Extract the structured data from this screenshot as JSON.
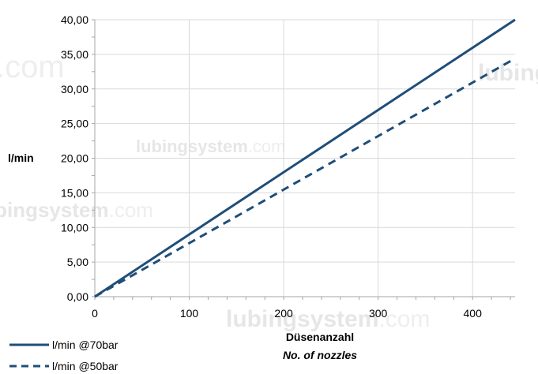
{
  "chart_data": {
    "type": "line",
    "title": "",
    "xlabel": "Düsenanzahl",
    "xlabel_sub": "No. of nozzles",
    "ylabel": "l/min",
    "xlim": [
      0,
      445
    ],
    "ylim": [
      0,
      40
    ],
    "x_ticks": [
      0,
      100,
      200,
      300,
      400
    ],
    "x_tick_labels": [
      "0",
      "100",
      "200",
      "300",
      "400"
    ],
    "y_ticks": [
      0,
      5,
      10,
      15,
      20,
      25,
      30,
      35,
      40
    ],
    "y_tick_labels": [
      "0,00",
      "5,00",
      "10,00",
      "15,00",
      "20,00",
      "25,00",
      "30,00",
      "35,00",
      "40,00"
    ],
    "grid": true,
    "legend_position": "bottom-left",
    "series": [
      {
        "name": "l/min @70bar",
        "style": "solid",
        "color": "#1f4e79",
        "x": [
          0,
          445
        ],
        "y": [
          0,
          40.0
        ]
      },
      {
        "name": "l/min @50bar",
        "style": "dashed",
        "color": "#1f4e79",
        "x": [
          0,
          445
        ],
        "y": [
          0,
          34.4
        ]
      }
    ]
  },
  "watermark": {
    "text_bold": "lubingsystem",
    "text_suffix": ".com"
  }
}
